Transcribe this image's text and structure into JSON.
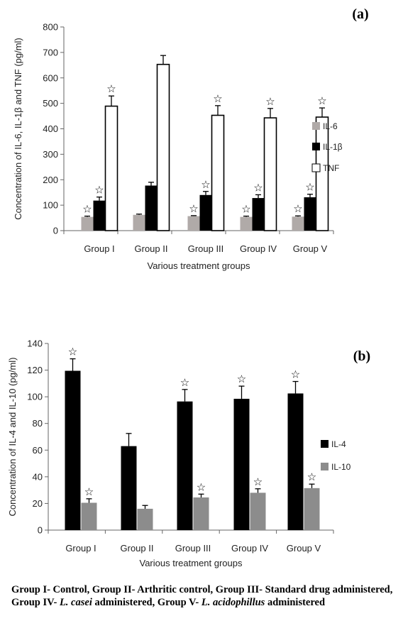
{
  "chart_data": [
    {
      "type": "bar",
      "panel_label": "(a)",
      "ylabel": "Concentration of IL-6, IL-1β and TNF (pg/ml)",
      "xlabel": "Various treatment groups",
      "ylim": [
        0,
        800
      ],
      "yticks": [
        0,
        100,
        200,
        300,
        400,
        500,
        600,
        700,
        800
      ],
      "legend_position": "right",
      "categories": [
        "Group I",
        "Group II",
        "Group III",
        "Group IV",
        "Group V"
      ],
      "series": [
        {
          "name": "IL-6",
          "color": "#b0aaa8",
          "values": [
            54,
            62,
            57,
            54,
            55
          ],
          "errors": [
            3,
            3,
            2,
            3,
            3
          ],
          "significant": [
            true,
            false,
            true,
            true,
            true
          ]
        },
        {
          "name": "IL-1β",
          "color": "#000000",
          "values": [
            118,
            177,
            140,
            128,
            131
          ],
          "errors": [
            14,
            13,
            14,
            13,
            12
          ],
          "significant": [
            true,
            false,
            true,
            true,
            true
          ]
        },
        {
          "name": "TNF",
          "color": "#ffffff",
          "values": [
            489,
            653,
            453,
            443,
            446
          ],
          "errors": [
            40,
            35,
            38,
            37,
            36
          ],
          "significant": [
            true,
            false,
            true,
            true,
            true
          ]
        }
      ]
    },
    {
      "type": "bar",
      "panel_label": "(b)",
      "ylabel": "Concentration of IL-4 and IL-10 (pg/ml)",
      "xlabel": "Various treatment groups",
      "ylim": [
        0,
        140
      ],
      "yticks": [
        0,
        20,
        40,
        60,
        80,
        100,
        120,
        140
      ],
      "legend_position": "right",
      "categories": [
        "Group I",
        "Group II",
        "Group III",
        "Group IV",
        "Group V"
      ],
      "series": [
        {
          "name": "IL-4",
          "color": "#000000",
          "values": [
            119.5,
            63,
            96.5,
            98.5,
            102.5
          ],
          "errors": [
            9,
            9.5,
            9,
            9.5,
            9
          ],
          "significant": [
            true,
            false,
            true,
            true,
            true
          ]
        },
        {
          "name": "IL-10",
          "color": "#8c8c8c",
          "values": [
            20.5,
            16,
            24.5,
            28,
            31.5
          ],
          "errors": [
            3,
            2.5,
            2.5,
            3,
            3
          ],
          "significant": [
            true,
            false,
            true,
            true,
            true
          ]
        }
      ]
    }
  ],
  "caption": {
    "part1": "Group I- Control, Group II- Arthritic control, Group III- Standard drug administered, Group IV- ",
    "casei": "L. casei",
    "part2": " administered, Group V- ",
    "acidophillus": "L. acidophillus",
    "part3": " administered"
  }
}
